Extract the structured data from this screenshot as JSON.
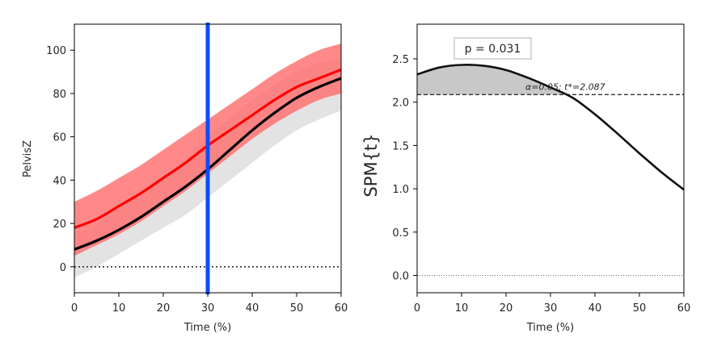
{
  "colors": {
    "mean_a": "#000000",
    "mean_b": "#ff0000",
    "band_a": "#d9d9d9",
    "band_b": "#ff6b6b",
    "cursor": "#0a4cff",
    "spm_fill": "#c8c8c8",
    "threshold_text": "#ff0000"
  },
  "chart_data": [
    {
      "type": "line",
      "xlabel": "Time (%)",
      "ylabel": "PelvisZ",
      "xlim": [
        0,
        60
      ],
      "ylim": [
        -12,
        112
      ],
      "xticks": [
        0,
        10,
        20,
        30,
        40,
        50,
        60
      ],
      "yticks": [
        0,
        20,
        40,
        60,
        80,
        100
      ],
      "grid": false,
      "x": [
        0,
        5,
        10,
        15,
        20,
        25,
        30,
        35,
        40,
        45,
        50,
        55,
        60
      ],
      "series": [
        {
          "color": "black",
          "values": [
            8,
            12,
            17,
            23,
            30,
            37,
            45,
            54,
            63,
            71,
            78,
            83,
            87
          ],
          "band_upper": [
            15,
            20,
            27,
            34,
            42,
            50,
            60,
            69,
            77,
            84,
            90,
            94,
            96
          ],
          "band_lower": [
            -5,
            0,
            6,
            12,
            18,
            24,
            32,
            40,
            48,
            56,
            63,
            68,
            72
          ]
        },
        {
          "color": "red",
          "values": [
            18,
            22,
            28,
            34,
            41,
            48,
            56,
            63,
            70,
            77,
            83,
            87,
            91
          ],
          "band_upper": [
            30,
            35,
            41,
            47,
            54,
            61,
            68,
            75,
            82,
            89,
            95,
            100,
            103
          ],
          "band_lower": [
            5,
            10,
            15,
            21,
            28,
            35,
            43,
            51,
            59,
            66,
            72,
            77,
            80
          ]
        }
      ],
      "zero_line": 0,
      "cursor_x": 30
    },
    {
      "type": "line",
      "xlabel": "Time (%)",
      "ylabel": "SPM{t}",
      "xlim": [
        0,
        60
      ],
      "ylim": [
        -0.2,
        2.9
      ],
      "xticks": [
        0,
        10,
        20,
        30,
        40,
        50,
        60
      ],
      "yticks": [
        0.0,
        0.5,
        1.0,
        1.5,
        2.0,
        2.5
      ],
      "ytick_labels": [
        "0.0",
        "0.5",
        "1.0",
        "1.5",
        "2.0",
        "2.5"
      ],
      "grid": false,
      "x": [
        0,
        5,
        10,
        15,
        20,
        25,
        30,
        35,
        40,
        45,
        50,
        55,
        60
      ],
      "spm": [
        2.32,
        2.4,
        2.43,
        2.42,
        2.37,
        2.28,
        2.17,
        2.05,
        1.86,
        1.64,
        1.41,
        1.19,
        0.99
      ],
      "threshold": 2.087,
      "zero_line": 0.0,
      "p_label": "p = 0.031",
      "threshold_label": "α=0.05:  t*=2.087"
    }
  ]
}
